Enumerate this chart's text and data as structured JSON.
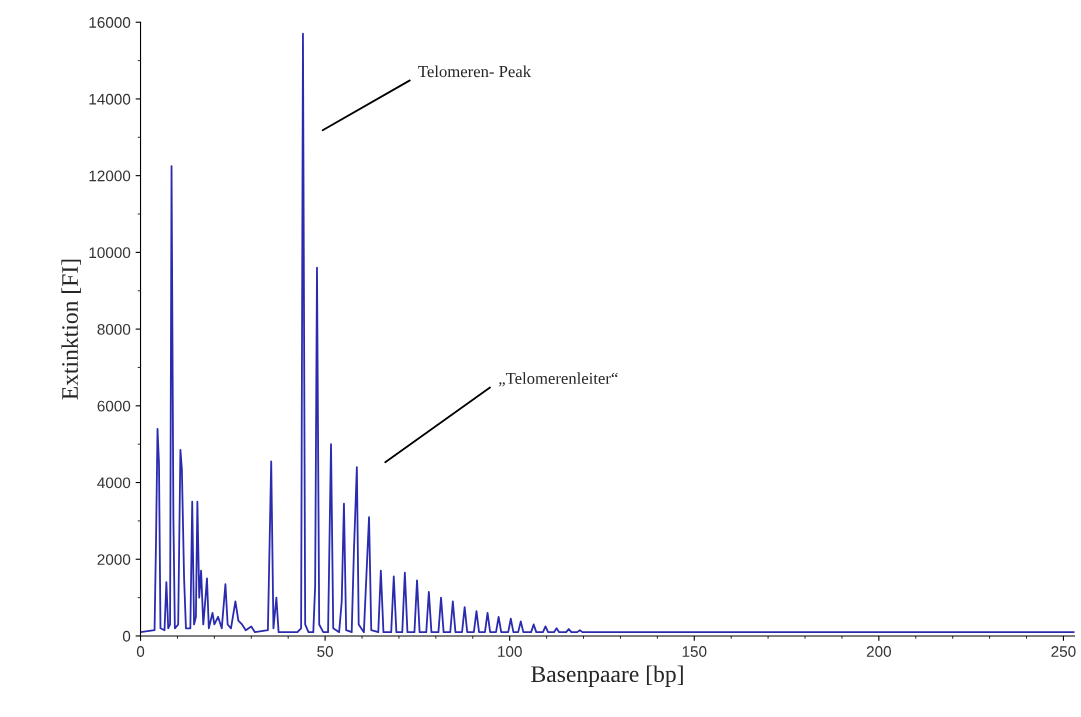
{
  "chart_data": {
    "type": "line",
    "xlabel": "Basenpaare [bp]",
    "ylabel": "Extinktion [FI]",
    "xlim": [
      0,
      253
    ],
    "ylim": [
      0,
      16000
    ],
    "xticks": [
      0,
      50,
      100,
      150,
      200,
      250
    ],
    "yticks": [
      0,
      2000,
      4000,
      6000,
      8000,
      10000,
      12000,
      14000,
      16000
    ],
    "grid": false,
    "legend": false,
    "marker": "none",
    "line_style": "solid",
    "annotations": [
      "Telomeren- Peak",
      "„Telomerenleiter“"
    ],
    "series": [
      {
        "color": "#2b2bb0",
        "x": [
          0,
          3.8,
          4.2,
          4.6,
          5.0,
          5.4,
          6.5,
          7,
          7.5,
          8.0,
          8.4,
          8.9,
          9.3,
          10.2,
          10.8,
          11.2,
          11.8,
          12.3,
          13.5,
          14,
          14.5,
          15,
          15.4,
          15.9,
          16.4,
          17,
          17.6,
          18,
          18.5,
          19.5,
          20,
          21,
          22,
          23,
          23.6,
          24.5,
          25.7,
          26.5,
          27.5,
          28.5,
          30,
          31,
          34.5,
          35.4,
          36,
          36.8,
          37.4,
          42.5,
          43.5,
          44,
          44.6,
          45.5,
          46.8,
          47.3,
          47.8,
          48.4,
          49.5,
          50.8,
          51.6,
          52.2,
          53.8,
          54.5,
          55.1,
          55.7,
          57.2,
          57.8,
          58.6,
          59.1,
          60.5,
          61.9,
          62.5,
          64.4,
          65.1,
          65.8,
          67.9,
          68.6,
          69.3,
          70.9,
          71.6,
          72.3,
          74.2,
          74.9,
          75.6,
          77.4,
          78.1,
          78.8,
          80.7,
          81.4,
          82.1,
          83.9,
          84.6,
          85.3,
          87.1,
          87.8,
          88.5,
          90.3,
          91,
          91.7,
          93.3,
          94,
          94.7,
          96.3,
          97,
          97.7,
          99.6,
          100.3,
          101,
          102.3,
          103,
          103.7,
          105.8,
          106.5,
          107.2,
          109,
          109.7,
          110.4,
          112,
          112.7,
          113.4,
          115.3,
          116,
          116.7,
          118.3,
          119,
          119.7,
          253
        ],
        "values": [
          100,
          150,
          2500,
          5400,
          4500,
          200,
          150,
          1400,
          200,
          300,
          12250,
          3100,
          200,
          300,
          4850,
          4350,
          1500,
          200,
          200,
          3500,
          300,
          500,
          3500,
          1000,
          1700,
          300,
          1000,
          1500,
          200,
          600,
          300,
          500,
          200,
          1350,
          300,
          200,
          900,
          400,
          300,
          150,
          250,
          100,
          150,
          4550,
          200,
          1000,
          100,
          100,
          200,
          15700,
          300,
          100,
          100,
          1300,
          9600,
          300,
          100,
          100,
          5000,
          200,
          100,
          900,
          3450,
          150,
          100,
          2200,
          4400,
          300,
          100,
          3100,
          150,
          100,
          1700,
          100,
          100,
          1550,
          100,
          100,
          1650,
          100,
          100,
          1450,
          100,
          100,
          1150,
          100,
          100,
          1000,
          100,
          100,
          900,
          100,
          100,
          750,
          100,
          100,
          650,
          100,
          100,
          600,
          100,
          100,
          500,
          100,
          100,
          450,
          100,
          100,
          380,
          100,
          100,
          300,
          100,
          100,
          250,
          100,
          100,
          200,
          100,
          100,
          180,
          100,
          100,
          150,
          100,
          100
        ]
      }
    ]
  }
}
